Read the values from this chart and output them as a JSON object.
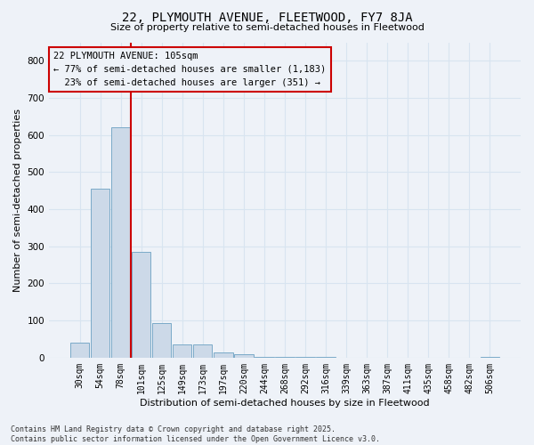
{
  "title": "22, PLYMOUTH AVENUE, FLEETWOOD, FY7 8JA",
  "subtitle": "Size of property relative to semi-detached houses in Fleetwood",
  "xlabel": "Distribution of semi-detached houses by size in Fleetwood",
  "ylabel": "Number of semi-detached properties",
  "categories": [
    "30sqm",
    "54sqm",
    "78sqm",
    "101sqm",
    "125sqm",
    "149sqm",
    "173sqm",
    "197sqm",
    "220sqm",
    "244sqm",
    "268sqm",
    "292sqm",
    "316sqm",
    "339sqm",
    "363sqm",
    "387sqm",
    "411sqm",
    "435sqm",
    "458sqm",
    "482sqm",
    "506sqm"
  ],
  "values": [
    40,
    455,
    620,
    285,
    92,
    35,
    35,
    15,
    8,
    3,
    2,
    1,
    1,
    0,
    0,
    0,
    0,
    0,
    0,
    0,
    3
  ],
  "bar_color": "#ccd9e8",
  "bar_edge_color": "#7aaac8",
  "vline_x": 2.5,
  "vline_color": "#cc0000",
  "annotation_text": "22 PLYMOUTH AVENUE: 105sqm\n← 77% of semi-detached houses are smaller (1,183)\n  23% of semi-detached houses are larger (351) →",
  "annotation_box_color": "#cc0000",
  "background_color": "#eef2f8",
  "grid_color": "#d8e4f0",
  "footer": "Contains HM Land Registry data © Crown copyright and database right 2025.\nContains public sector information licensed under the Open Government Licence v3.0.",
  "ylim": [
    0,
    850
  ],
  "yticks": [
    0,
    100,
    200,
    300,
    400,
    500,
    600,
    700,
    800
  ],
  "title_fontsize": 10,
  "subtitle_fontsize": 8,
  "tick_fontsize": 7,
  "ylabel_fontsize": 8,
  "xlabel_fontsize": 8
}
